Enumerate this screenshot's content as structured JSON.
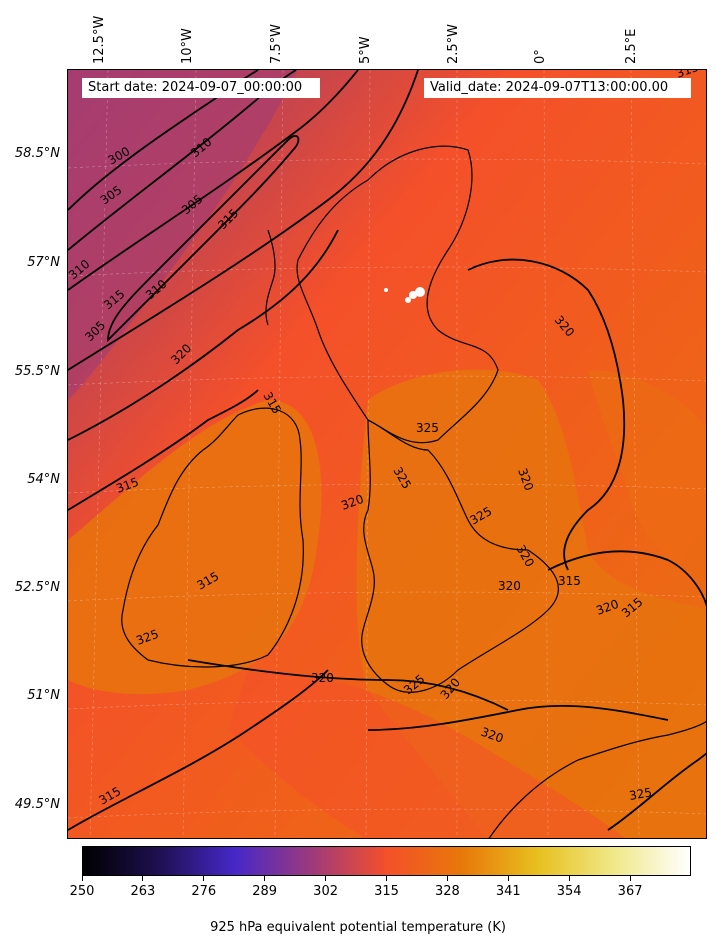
{
  "header": {
    "start_date": "Start date: 2024-09-07_00:00:00",
    "valid_date": "Valid_date: 2024-09-07T13:00:00.00"
  },
  "map": {
    "longitude_labels": [
      "12.5°W",
      "10°W",
      "7.5°W",
      "5°W",
      "2.5°W",
      "0°",
      "2.5°E"
    ],
    "latitude_labels": [
      "58.5°N",
      "57°N",
      "55.5°N",
      "54°N",
      "52.5°N",
      "51°N",
      "49.5°N"
    ],
    "contour_labels": [
      "315",
      "300",
      "310",
      "305",
      "305",
      "315",
      "310",
      "310",
      "315",
      "305",
      "320",
      "320",
      "315",
      "325",
      "315",
      "325",
      "320",
      "320",
      "325",
      "320",
      "315",
      "320",
      "315",
      "325",
      "325",
      "320",
      "315",
      "320",
      "320",
      "320",
      "315",
      "325"
    ],
    "field_colors": {
      "cool_purple": "#9c3a7c",
      "mid_red": "#f4502a",
      "warm_orange": "#e8720e",
      "contour": "#000000"
    }
  },
  "colorbar": {
    "tick_labels": [
      "250",
      "263",
      "276",
      "289",
      "302",
      "315",
      "328",
      "341",
      "354",
      "367"
    ],
    "title": "925 hPa equivalent potential temperature (K)",
    "gradient_stops": [
      "#000000",
      "#1e1050",
      "#4628c8",
      "#9c3a7c",
      "#f4502a",
      "#e8780a",
      "#e8c020",
      "#f0e888",
      "#ffffff"
    ]
  }
}
